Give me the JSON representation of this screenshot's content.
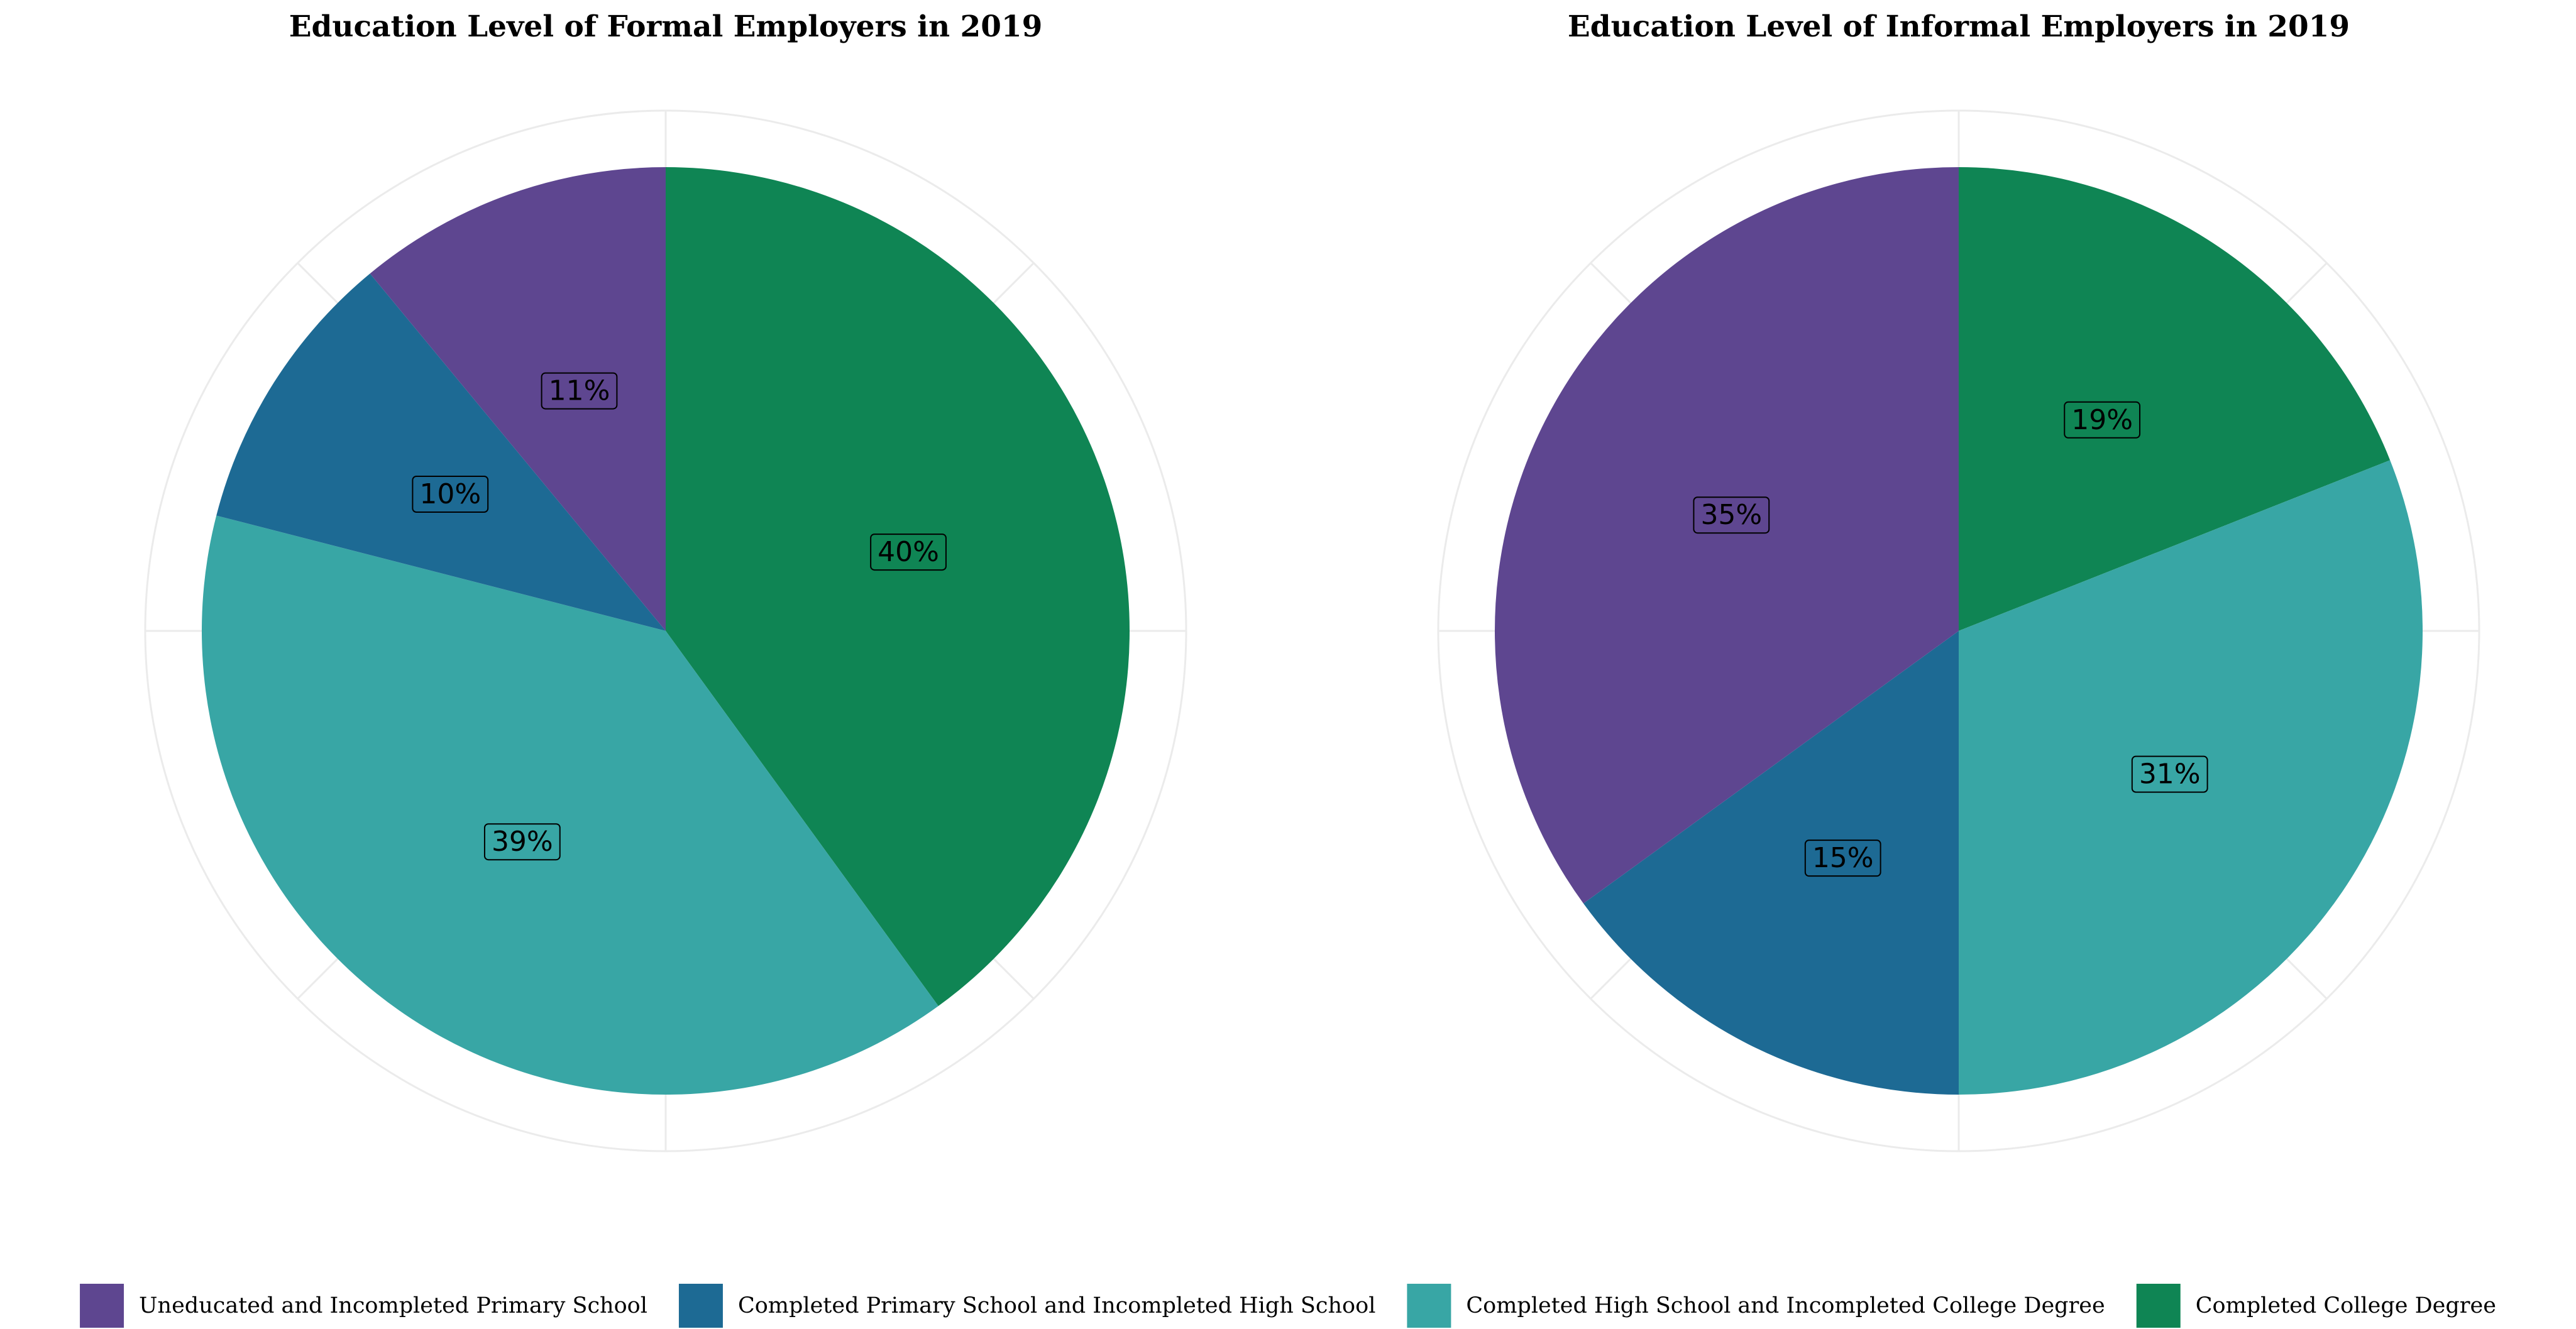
{
  "legend": {
    "position": "bottom",
    "items": [
      {
        "label": "Uneducated and Incompleted Primary School",
        "color": "#5E4690"
      },
      {
        "label": "Completed Primary School and Incompleted High School",
        "color": "#1D6A94"
      },
      {
        "label": "Completed High School and Incompleted College Degree",
        "color": "#38A6A5"
      },
      {
        "label": "Completed College Degree",
        "color": "#0F8554"
      }
    ]
  },
  "chart_data": [
    {
      "type": "pie",
      "title": "Education Level of Formal Employers in 2019",
      "direction": "clockwise-from-top",
      "grid": true,
      "slices": [
        {
          "category": "Completed College Degree",
          "value": 40,
          "label": "40%",
          "color": "#0F8554"
        },
        {
          "category": "Completed High School and Incompleted College Degree",
          "value": 39,
          "label": "39%",
          "color": "#38A6A5"
        },
        {
          "category": "Completed Primary School and Incompleted High School",
          "value": 10,
          "label": "10%",
          "color": "#1D6A94"
        },
        {
          "category": "Uneducated and Incompleted Primary School",
          "value": 11,
          "label": "11%",
          "color": "#5E4690"
        }
      ]
    },
    {
      "type": "pie",
      "title": "Education Level of Informal Employers in 2019",
      "direction": "clockwise-from-top",
      "grid": true,
      "slices": [
        {
          "category": "Completed College Degree",
          "value": 19,
          "label": "19%",
          "color": "#0F8554"
        },
        {
          "category": "Completed High School and Incompleted College Degree",
          "value": 31,
          "label": "31%",
          "color": "#38A6A5"
        },
        {
          "category": "Completed Primary School and Incompleted High School",
          "value": 15,
          "label": "15%",
          "color": "#1D6A94"
        },
        {
          "category": "Uneducated and Incompleted Primary School",
          "value": 35,
          "label": "35%",
          "color": "#5E4690"
        }
      ]
    }
  ]
}
